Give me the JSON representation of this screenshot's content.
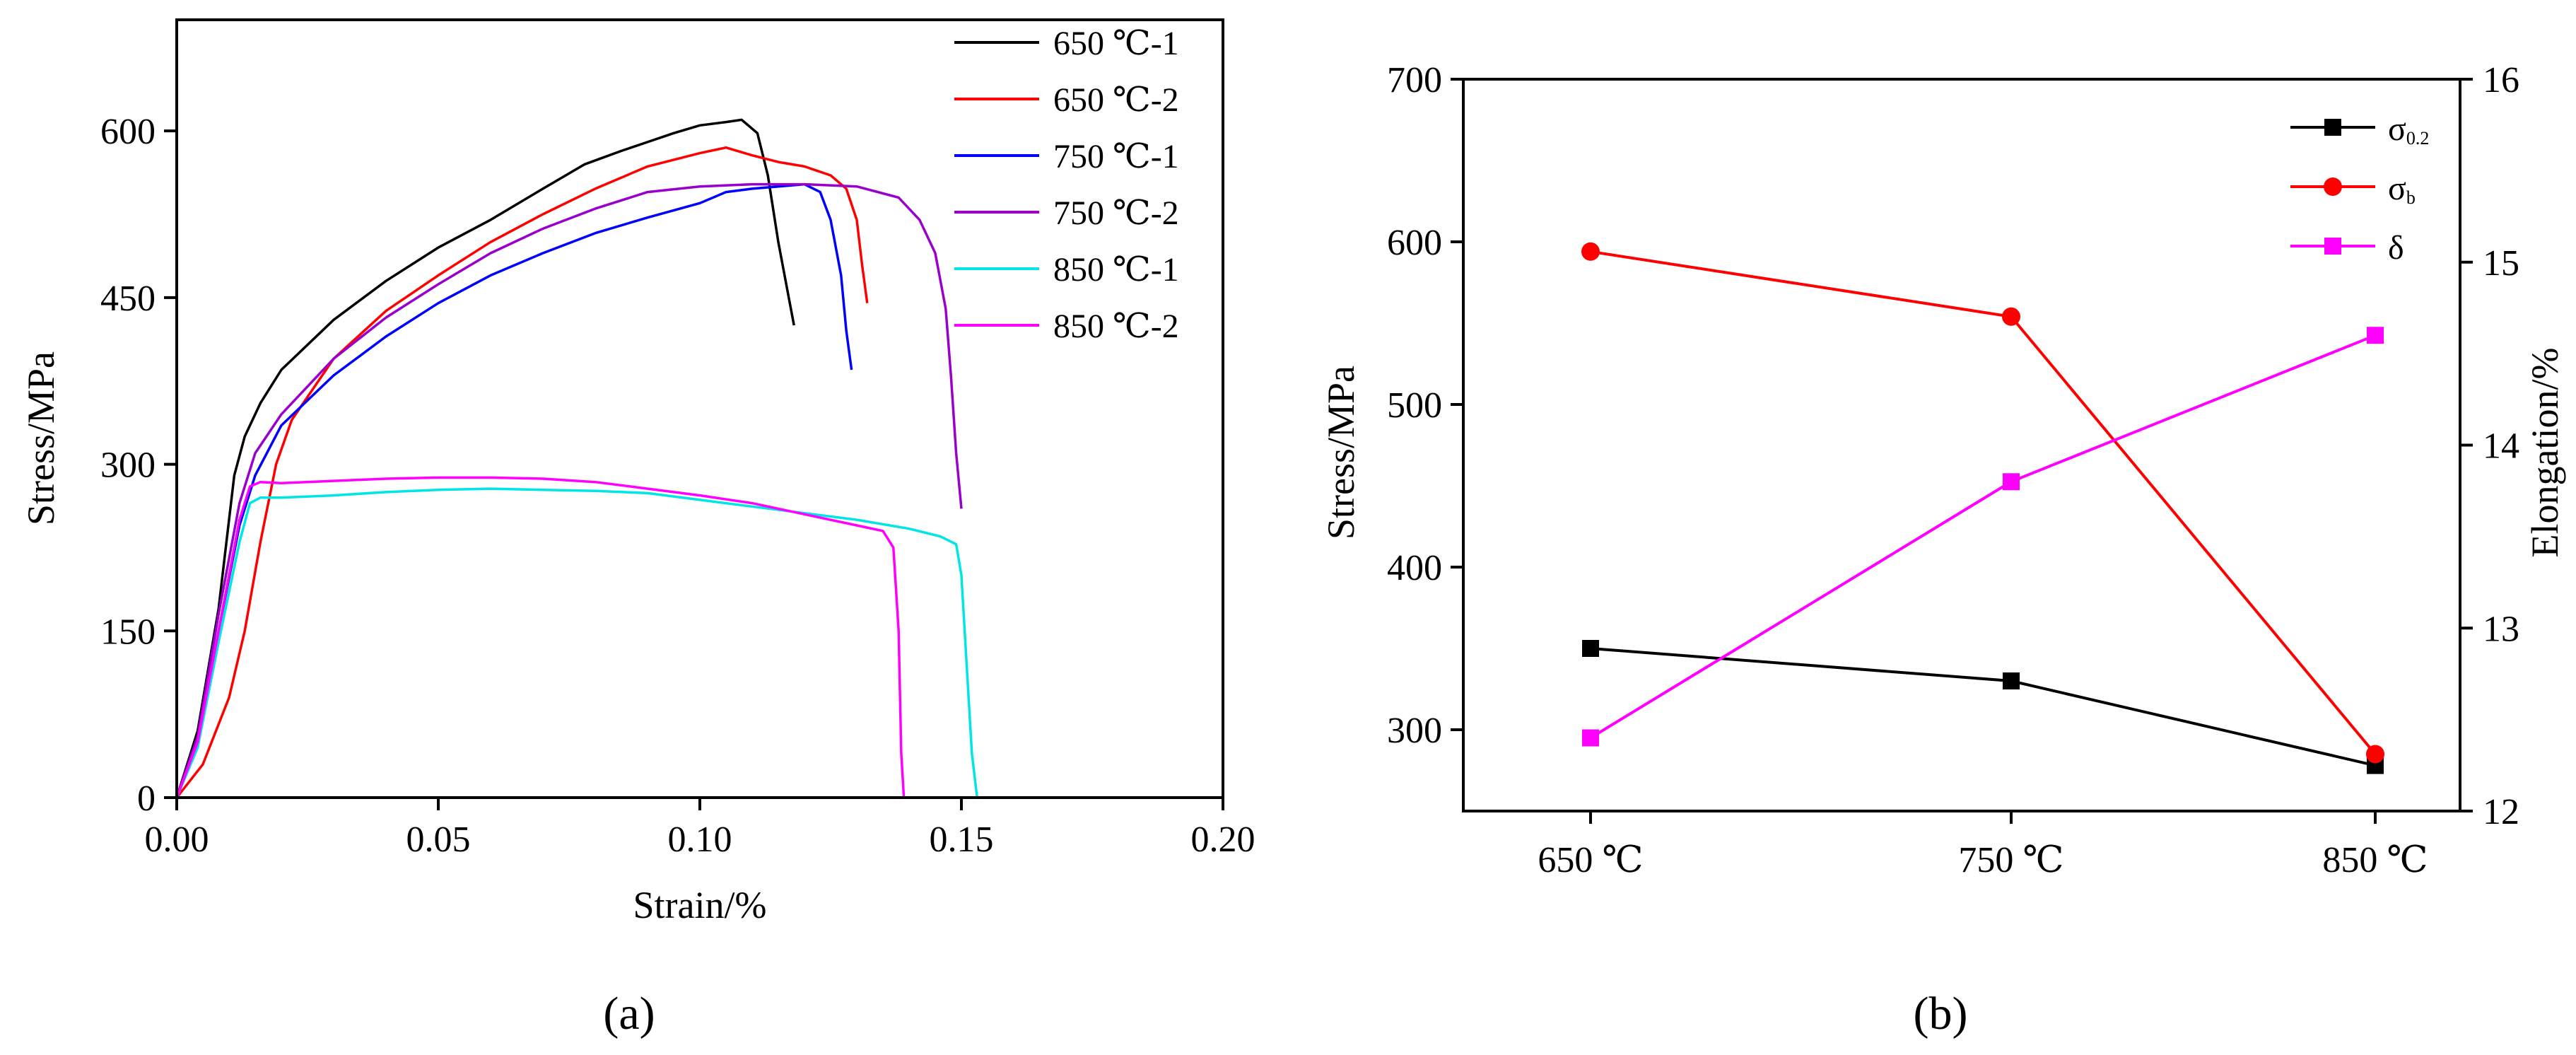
{
  "figure": {
    "panel_a_label": "(a)",
    "panel_b_label": "(b)"
  },
  "chart_data": [
    {
      "type": "line",
      "panel": "a",
      "title": "",
      "xlabel": "Strain/%",
      "ylabel": "Stress/MPa",
      "xlim": [
        0,
        0.2
      ],
      "ylim": [
        0,
        700
      ],
      "xticks": [
        0.0,
        0.05,
        0.1,
        0.15,
        0.2
      ],
      "xtick_labels": [
        "0.00",
        "0.05",
        "0.10",
        "0.15",
        "0.20"
      ],
      "yticks": [
        0,
        150,
        300,
        450,
        600
      ],
      "ytick_labels": [
        "0",
        "150",
        "300",
        "450",
        "600"
      ],
      "legend_position": "top-right",
      "series": [
        {
          "name": "650 ℃-1",
          "color": "#000000",
          "points": [
            [
              0,
              0
            ],
            [
              0.004,
              60
            ],
            [
              0.008,
              170
            ],
            [
              0.011,
              290
            ],
            [
              0.013,
              325
            ],
            [
              0.016,
              355
            ],
            [
              0.02,
              385
            ],
            [
              0.03,
              430
            ],
            [
              0.04,
              465
            ],
            [
              0.05,
              495
            ],
            [
              0.06,
              520
            ],
            [
              0.07,
              548
            ],
            [
              0.078,
              570
            ],
            [
              0.085,
              582
            ],
            [
              0.09,
              590
            ],
            [
              0.095,
              598
            ],
            [
              0.1,
              605
            ],
            [
              0.105,
              608
            ],
            [
              0.108,
              610
            ],
            [
              0.111,
              598
            ],
            [
              0.113,
              560
            ],
            [
              0.115,
              500
            ],
            [
              0.117,
              450
            ],
            [
              0.118,
              425
            ]
          ]
        },
        {
          "name": "650 ℃-2",
          "color": "#ff0000",
          "points": [
            [
              0,
              0
            ],
            [
              0.005,
              30
            ],
            [
              0.01,
              90
            ],
            [
              0.013,
              150
            ],
            [
              0.016,
              230
            ],
            [
              0.019,
              300
            ],
            [
              0.022,
              340
            ],
            [
              0.03,
              395
            ],
            [
              0.04,
              438
            ],
            [
              0.05,
              470
            ],
            [
              0.06,
              500
            ],
            [
              0.07,
              525
            ],
            [
              0.08,
              548
            ],
            [
              0.09,
              568
            ],
            [
              0.1,
              580
            ],
            [
              0.105,
              585
            ],
            [
              0.11,
              578
            ],
            [
              0.115,
              572
            ],
            [
              0.12,
              568
            ],
            [
              0.125,
              560
            ],
            [
              0.128,
              548
            ],
            [
              0.13,
              520
            ],
            [
              0.131,
              480
            ],
            [
              0.132,
              445
            ]
          ]
        },
        {
          "name": "750 ℃-1",
          "color": "#0000ff",
          "points": [
            [
              0,
              0
            ],
            [
              0.004,
              50
            ],
            [
              0.008,
              150
            ],
            [
              0.012,
              245
            ],
            [
              0.015,
              290
            ],
            [
              0.02,
              335
            ],
            [
              0.03,
              380
            ],
            [
              0.04,
              415
            ],
            [
              0.05,
              445
            ],
            [
              0.06,
              470
            ],
            [
              0.07,
              490
            ],
            [
              0.08,
              508
            ],
            [
              0.09,
              522
            ],
            [
              0.1,
              535
            ],
            [
              0.105,
              545
            ],
            [
              0.11,
              548
            ],
            [
              0.115,
              550
            ],
            [
              0.12,
              552
            ],
            [
              0.123,
              545
            ],
            [
              0.125,
              520
            ],
            [
              0.127,
              470
            ],
            [
              0.128,
              420
            ],
            [
              0.129,
              385
            ]
          ]
        },
        {
          "name": "750 ℃-2",
          "color": "#9900cc",
          "points": [
            [
              0,
              0
            ],
            [
              0.004,
              55
            ],
            [
              0.008,
              165
            ],
            [
              0.012,
              265
            ],
            [
              0.015,
              310
            ],
            [
              0.02,
              345
            ],
            [
              0.03,
              395
            ],
            [
              0.04,
              432
            ],
            [
              0.05,
              462
            ],
            [
              0.06,
              490
            ],
            [
              0.07,
              512
            ],
            [
              0.08,
              530
            ],
            [
              0.09,
              545
            ],
            [
              0.1,
              550
            ],
            [
              0.11,
              552
            ],
            [
              0.12,
              552
            ],
            [
              0.13,
              550
            ],
            [
              0.138,
              540
            ],
            [
              0.142,
              520
            ],
            [
              0.145,
              490
            ],
            [
              0.147,
              440
            ],
            [
              0.148,
              380
            ],
            [
              0.149,
              310
            ],
            [
              0.15,
              260
            ]
          ]
        },
        {
          "name": "850 ℃-1",
          "color": "#00e5e5",
          "points": [
            [
              0,
              0
            ],
            [
              0.004,
              45
            ],
            [
              0.008,
              140
            ],
            [
              0.012,
              230
            ],
            [
              0.014,
              265
            ],
            [
              0.016,
              270
            ],
            [
              0.02,
              270
            ],
            [
              0.03,
              272
            ],
            [
              0.04,
              275
            ],
            [
              0.05,
              277
            ],
            [
              0.06,
              278
            ],
            [
              0.07,
              277
            ],
            [
              0.08,
              276
            ],
            [
              0.09,
              274
            ],
            [
              0.1,
              268
            ],
            [
              0.11,
              262
            ],
            [
              0.12,
              256
            ],
            [
              0.13,
              250
            ],
            [
              0.14,
              242
            ],
            [
              0.146,
              235
            ],
            [
              0.149,
              228
            ],
            [
              0.15,
              200
            ],
            [
              0.151,
              120
            ],
            [
              0.152,
              40
            ],
            [
              0.153,
              0
            ]
          ]
        },
        {
          "name": "850 ℃-2",
          "color": "#ff00ff",
          "points": [
            [
              0,
              0
            ],
            [
              0.004,
              50
            ],
            [
              0.008,
              150
            ],
            [
              0.012,
              250
            ],
            [
              0.014,
              280
            ],
            [
              0.016,
              284
            ],
            [
              0.02,
              283
            ],
            [
              0.03,
              285
            ],
            [
              0.04,
              287
            ],
            [
              0.05,
              288
            ],
            [
              0.06,
              288
            ],
            [
              0.07,
              287
            ],
            [
              0.08,
              284
            ],
            [
              0.09,
              278
            ],
            [
              0.1,
              272
            ],
            [
              0.11,
              265
            ],
            [
              0.12,
              255
            ],
            [
              0.13,
              245
            ],
            [
              0.135,
              240
            ],
            [
              0.137,
              225
            ],
            [
              0.138,
              150
            ],
            [
              0.1385,
              40
            ],
            [
              0.139,
              0
            ]
          ]
        }
      ]
    },
    {
      "type": "line",
      "panel": "b",
      "title": "",
      "xlabel": "",
      "ylabel": "Stress/MPa",
      "ylabel_right": "Elongation/%",
      "categories": [
        "650 ℃",
        "750 ℃",
        "850 ℃"
      ],
      "ylim": [
        250,
        700
      ],
      "ylim_right": [
        12,
        16
      ],
      "yticks": [
        300,
        400,
        500,
        600,
        700
      ],
      "yticks_right": [
        12,
        13,
        14,
        15,
        16
      ],
      "legend_position": "top-right",
      "series": [
        {
          "name": "σ",
          "subscript": "0.2",
          "axis": "left",
          "color": "#000000",
          "marker": "square",
          "values": [
            350,
            330,
            278
          ]
        },
        {
          "name": "σ",
          "subscript": "b",
          "axis": "left",
          "color": "#ff0000",
          "marker": "circle",
          "values": [
            594,
            554,
            285
          ]
        },
        {
          "name": "δ",
          "subscript": "",
          "axis": "right",
          "color": "#ff00ff",
          "marker": "square",
          "values": [
            12.4,
            13.8,
            14.6
          ]
        }
      ]
    }
  ]
}
